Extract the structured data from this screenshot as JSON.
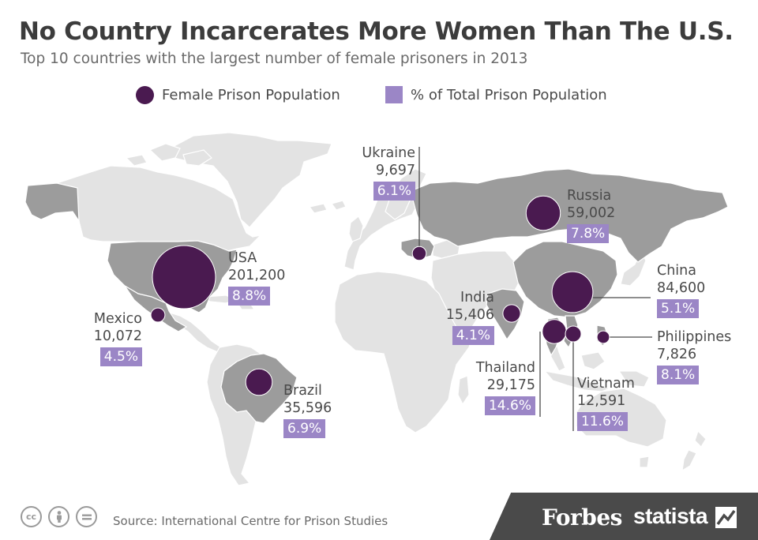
{
  "title": "No Country Incarcerates More Women Than The U.S.",
  "subtitle": "Top 10 countries with the largest number of female prisoners in 2013",
  "legend": {
    "population": "Female Prison Population",
    "percent": "% of Total Prison Population"
  },
  "colors": {
    "bubble": "#4a1a50",
    "percent_box": "#9b86c6",
    "land": "#e3e3e3",
    "highlight_land": "#9c9c9c",
    "borders": "#ffffff"
  },
  "countries": {
    "usa": {
      "name": "USA",
      "value": "201,200",
      "pct": "8.8%",
      "count": 201200
    },
    "mexico": {
      "name": "Mexico",
      "value": "10,072",
      "pct": "4.5%",
      "count": 10072
    },
    "brazil": {
      "name": "Brazil",
      "value": "35,596",
      "pct": "6.9%",
      "count": 35596
    },
    "ukraine": {
      "name": "Ukraine",
      "value": "9,697",
      "pct": "6.1%",
      "count": 9697
    },
    "russia": {
      "name": "Russia",
      "value": "59,002",
      "pct": "7.8%",
      "count": 59002
    },
    "china": {
      "name": "China",
      "value": "84,600",
      "pct": "5.1%",
      "count": 84600
    },
    "india": {
      "name": "India",
      "value": "15,406",
      "pct": "4.1%",
      "count": 15406
    },
    "thailand": {
      "name": "Thailand",
      "value": "29,175",
      "pct": "14.6%",
      "count": 29175
    },
    "vietnam": {
      "name": "Vietnam",
      "value": "12,591",
      "pct": "11.6%",
      "count": 12591
    },
    "philippines": {
      "name": "Philippines",
      "value": "7,826",
      "pct": "8.1%",
      "count": 7826
    }
  },
  "footer": {
    "source": "Source: International Centre for Prison Studies",
    "license_icons": [
      "cc-icon",
      "attribution-icon",
      "no-derivatives-icon"
    ],
    "brand_forbes": "Forbes",
    "brand_statista": "statista"
  }
}
